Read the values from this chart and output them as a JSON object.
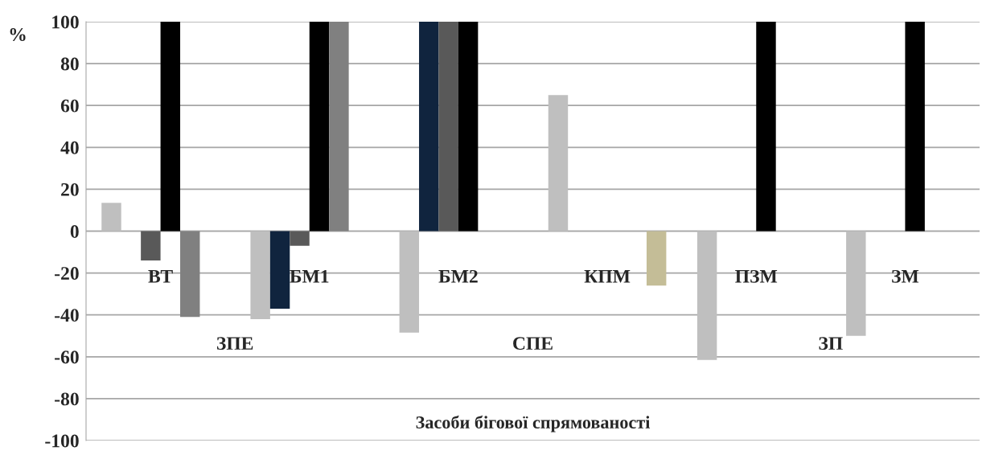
{
  "chart_data": {
    "type": "bar",
    "xlabel": "Засоби бігової спрямованості",
    "ylabel": "%",
    "categories": [
      "ВТ",
      "БМ1",
      "БМ2",
      "КПМ",
      "ПЗМ",
      "ЗМ"
    ],
    "annotations": [
      "ЗПЕ",
      "СПЕ",
      "ЗП"
    ],
    "series": [
      {
        "color": "#bfbfbf",
        "values": [
          13.5,
          -42,
          -48.5,
          65,
          -61.5,
          -50
        ]
      },
      {
        "color": "#10243e",
        "values": [
          null,
          -37,
          100,
          null,
          null,
          null
        ]
      },
      {
        "color": "#595959",
        "values": [
          -14,
          -7,
          100,
          null,
          null,
          null
        ]
      },
      {
        "color": "#000000",
        "values": [
          100,
          100,
          100,
          null,
          100,
          100
        ]
      },
      {
        "color": "#808080",
        "values": [
          -41,
          100,
          null,
          null,
          null,
          null
        ]
      },
      {
        "color": "#c4bd97",
        "values": [
          null,
          null,
          null,
          -26,
          null,
          null
        ]
      }
    ],
    "ylim": [
      -100,
      100
    ],
    "yticks": [
      -100,
      -80,
      -60,
      -40,
      -20,
      0,
      20,
      40,
      60,
      80,
      100
    ],
    "grid": "y",
    "legend": false
  }
}
